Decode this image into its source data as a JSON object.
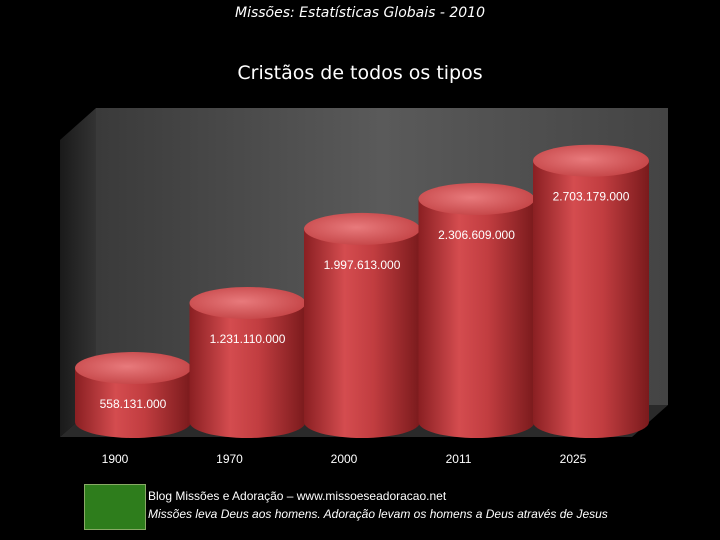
{
  "header": {
    "title": "Missões: Estatísticas Globais - 2010"
  },
  "chart_data": {
    "type": "bar",
    "title": "Cristãos de todos os tipos",
    "categories": [
      "1900",
      "1970",
      "2000",
      "2011",
      "2025"
    ],
    "values": [
      558131000,
      1231110000,
      1997613000,
      2306609000,
      2703179000
    ],
    "value_labels": [
      "558.131.000",
      "1.231.110.000",
      "1.997.613.000",
      "2.306.609.000",
      "2.703.179.000"
    ],
    "ylim": [
      0,
      3000000000
    ],
    "grid": false,
    "legend": "none",
    "colors": {
      "bar": "#c0393b",
      "bar_top": "#e0696b",
      "background_wall": "#4a4a4a"
    }
  },
  "footer": {
    "line1": "Blog Missões e Adoração – www.missoeseadoracao.net",
    "line2": "Missões leva Deus aos homens. Adoração levam os homens a Deus através de Jesus"
  }
}
